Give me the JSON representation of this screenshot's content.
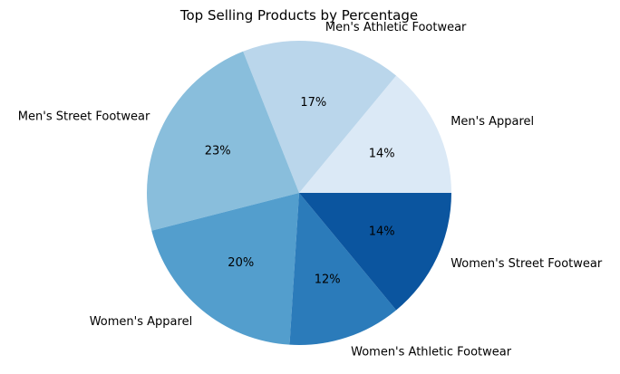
{
  "chart_data": {
    "type": "pie",
    "title": "Top Selling Products by Percentage",
    "categories": [
      "Men's Apparel",
      "Men's Athletic Footwear",
      "Men's Street Footwear",
      "Women's Apparel",
      "Women's Athletic Footwear",
      "Women's Street Footwear"
    ],
    "values": [
      14,
      17,
      23,
      20,
      12,
      14
    ],
    "value_labels": [
      "14%",
      "17%",
      "23%",
      "20%",
      "12%",
      "14%"
    ],
    "colors": [
      "#dbe9f6",
      "#bad6eb",
      "#89bedc",
      "#539ecd",
      "#2b7bba",
      "#0b559f"
    ],
    "start_angle_deg": 0,
    "direction": "counterclockwise",
    "legend": "none"
  }
}
